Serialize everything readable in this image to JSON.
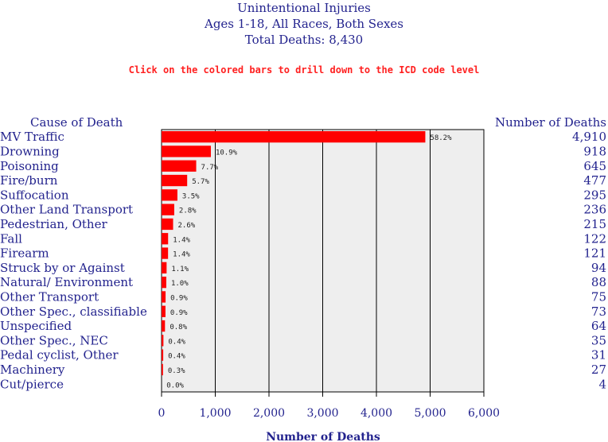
{
  "header": {
    "title": "Unintentional Injuries",
    "subtitle": "Ages 1-18, All Races, Both Sexes",
    "total": "Total Deaths: 8,430"
  },
  "notice": "Click on the colored bars to drill down to the ICD code level",
  "columns": {
    "cause": "Cause of Death",
    "deaths": "Number of Deaths"
  },
  "colors": {
    "bar": "#ff0000",
    "text": "#23238e",
    "notice": "#ff2020",
    "plot_bg": "#eeeeee"
  },
  "chart_data": {
    "type": "bar",
    "orientation": "horizontal",
    "xlabel": "Number of Deaths",
    "xlim": [
      0,
      6000
    ],
    "xticks": [
      "0",
      "1,000",
      "2,000",
      "3,000",
      "4,000",
      "5,000",
      "6,000"
    ],
    "grid": true,
    "categories": [
      "MV Traffic",
      "Drowning",
      "Poisoning",
      "Fire/burn",
      "Suffocation",
      "Other Land Transport",
      "Pedestrian, Other",
      "Fall",
      "Firearm",
      "Struck by or Against",
      "Natural/ Environment",
      "Other Transport",
      "Other Spec., classifiable",
      "Unspecified",
      "Other Spec., NEC",
      "Pedal cyclist, Other",
      "Machinery",
      "Cut/pierce"
    ],
    "values": [
      4910,
      918,
      645,
      477,
      295,
      236,
      215,
      122,
      121,
      94,
      88,
      75,
      73,
      64,
      35,
      31,
      27,
      4
    ],
    "value_labels": [
      "4,910",
      "918",
      "645",
      "477",
      "295",
      "236",
      "215",
      "122",
      "121",
      "94",
      "88",
      "75",
      "73",
      "64",
      "35",
      "31",
      "27",
      "4"
    ],
    "percent_labels": [
      "58.2%",
      "10.9%",
      "7.7%",
      "5.7%",
      "3.5%",
      "2.8%",
      "2.6%",
      "1.4%",
      "1.4%",
      "1.1%",
      "1.0%",
      "0.9%",
      "0.9%",
      "0.8%",
      "0.4%",
      "0.4%",
      "0.3%",
      "0.0%"
    ]
  }
}
